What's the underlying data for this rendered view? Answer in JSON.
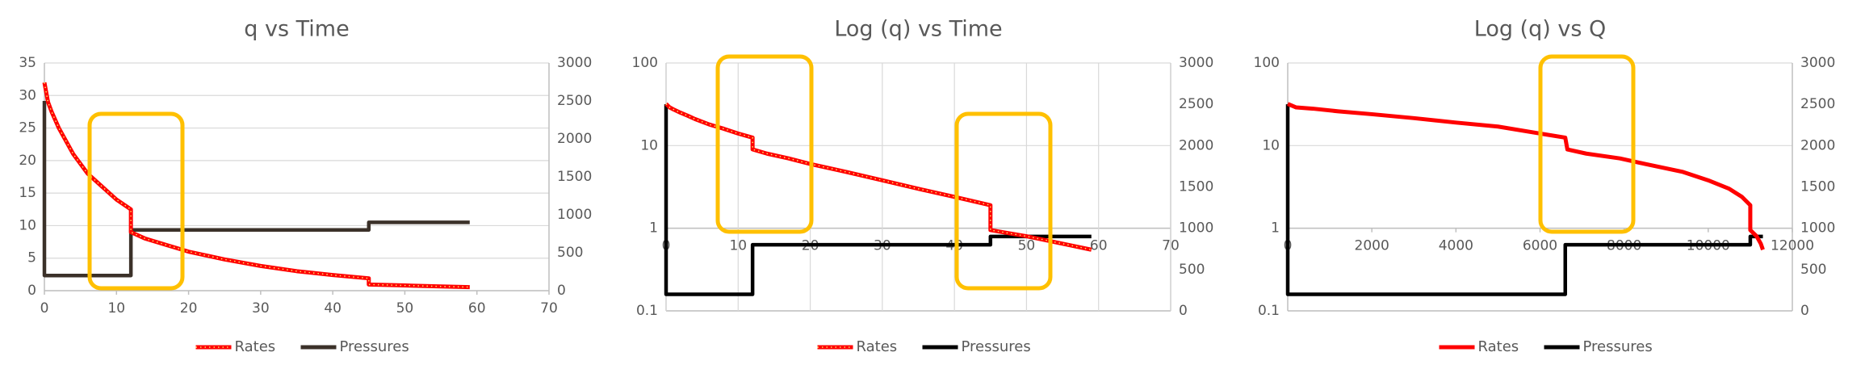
{
  "chart_data": [
    {
      "type": "line",
      "title": "q vs Time",
      "xlim": [
        0,
        70
      ],
      "xticks": [
        0,
        10,
        20,
        30,
        40,
        50,
        60,
        70
      ],
      "ylim": [
        0,
        35
      ],
      "yticks": [
        0,
        5,
        10,
        15,
        20,
        25,
        30,
        35
      ],
      "y2lim": [
        0,
        3000
      ],
      "y2ticks": [
        0,
        500,
        1000,
        1500,
        2000,
        2500,
        3000
      ],
      "grid": "y",
      "legend": "bottom",
      "series": [
        {
          "name": "Rates",
          "color": "#ff0000",
          "marker_color": "#ffd966",
          "x": [
            0,
            0.5,
            1,
            2,
            3,
            4,
            6,
            8,
            10,
            12,
            12,
            14,
            17,
            20,
            25,
            30,
            35,
            40,
            45,
            45,
            50,
            55,
            59
          ],
          "values": [
            32,
            29,
            27.5,
            25,
            23,
            21,
            18,
            16,
            14,
            12.5,
            9,
            8,
            7,
            6,
            4.8,
            3.8,
            3,
            2.4,
            1.9,
            0.95,
            0.8,
            0.65,
            0.55
          ]
        },
        {
          "name": "Pressures",
          "color": "#3b3129",
          "axis": "y2",
          "x": [
            0,
            0,
            12,
            12,
            45,
            45,
            59
          ],
          "values": [
            2500,
            200,
            200,
            800,
            800,
            900,
            900
          ]
        }
      ]
    },
    {
      "type": "line",
      "title": "Log (q)  vs Time",
      "ylog": true,
      "x_axis_at": 1,
      "xlim": [
        0,
        70
      ],
      "xticks": [
        0,
        10,
        20,
        30,
        40,
        50,
        60,
        70
      ],
      "ylim": [
        0.1,
        100
      ],
      "yticks": [
        0.1,
        1,
        10,
        100
      ],
      "y2lim": [
        0,
        3000
      ],
      "y2ticks": [
        0,
        500,
        1000,
        1500,
        2000,
        2500,
        3000
      ],
      "grid": "both",
      "legend": "bottom",
      "series": [
        {
          "name": "Rates",
          "color": "#ff0000",
          "marker_color": "#ffd966",
          "x": [
            0,
            0.5,
            1,
            2,
            3,
            4,
            6,
            8,
            10,
            12,
            12,
            14,
            17,
            20,
            25,
            30,
            35,
            40,
            45,
            45,
            50,
            55,
            59
          ],
          "values": [
            32,
            29,
            27.5,
            25,
            23,
            21,
            18,
            16,
            14,
            12.5,
            9,
            8,
            7,
            6,
            4.8,
            3.8,
            3,
            2.4,
            1.9,
            0.95,
            0.8,
            0.65,
            0.55
          ]
        },
        {
          "name": "Pressures",
          "color": "#000000",
          "axis": "y2",
          "x": [
            0,
            0,
            12,
            12,
            45,
            45,
            59
          ],
          "values": [
            2500,
            200,
            200,
            800,
            800,
            900,
            900
          ]
        }
      ]
    },
    {
      "type": "line",
      "title": "Log (q)  vs Q",
      "ylog": true,
      "x_axis_at": 1,
      "xlim": [
        0,
        12000
      ],
      "xticks": [
        0,
        2000,
        4000,
        6000,
        8000,
        10000,
        12000
      ],
      "ylim": [
        0.1,
        100
      ],
      "yticks": [
        0.1,
        1,
        10,
        100
      ],
      "y2lim": [
        0,
        3000
      ],
      "y2ticks": [
        0,
        500,
        1000,
        1500,
        2000,
        2500,
        3000
      ],
      "grid": "y",
      "legend": "bottom",
      "series": [
        {
          "name": "Rates",
          "color": "#ff0000",
          "x": [
            0,
            200,
            600,
            1200,
            2000,
            3000,
            4000,
            5000,
            6000,
            6600,
            6650,
            7100,
            7900,
            8500,
            9400,
            10000,
            10500,
            10800,
            11000,
            11000,
            11150,
            11250,
            11300
          ],
          "values": [
            32,
            29,
            28,
            26,
            24,
            21.5,
            19,
            17,
            14,
            12.5,
            9,
            8,
            7,
            6,
            4.8,
            3.8,
            3,
            2.4,
            1.9,
            0.95,
            0.8,
            0.65,
            0.55
          ]
        },
        {
          "name": "Pressures",
          "color": "#000000",
          "axis": "y2",
          "x": [
            0,
            0,
            6600,
            6600,
            11000,
            11000,
            11300
          ],
          "values": [
            2500,
            200,
            200,
            800,
            800,
            900,
            900
          ]
        }
      ]
    }
  ]
}
